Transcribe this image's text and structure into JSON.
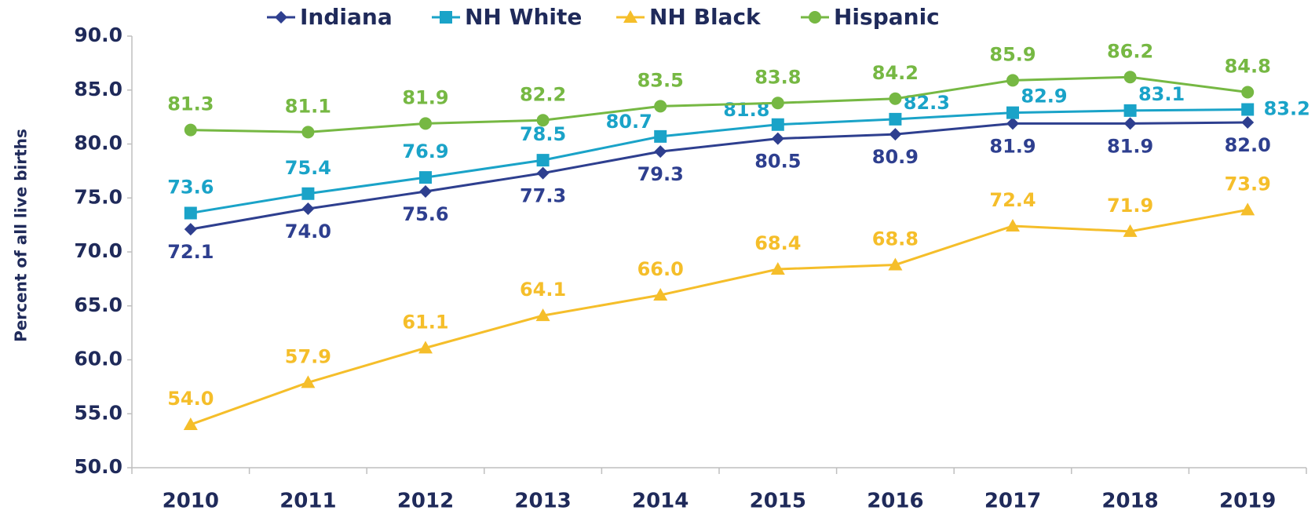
{
  "chart_data": {
    "type": "line",
    "y_label": "Percent of all live births",
    "categories": [
      "2010",
      "2011",
      "2012",
      "2013",
      "2014",
      "2015",
      "2016",
      "2017",
      "2018",
      "2019"
    ],
    "series": [
      {
        "name": "Indiana",
        "color": "#2e3f8f",
        "marker": "diamond",
        "values": [
          72.1,
          74.0,
          75.6,
          77.3,
          79.3,
          80.5,
          80.9,
          81.9,
          81.9,
          82.0
        ],
        "value_labels": [
          "72.1",
          "74.0",
          "75.6",
          "77.3",
          "79.3",
          "80.5",
          "80.9",
          "81.9",
          "81.9",
          "82.0"
        ]
      },
      {
        "name": "NH White",
        "color": "#1aa3c8",
        "marker": "square",
        "values": [
          73.6,
          75.4,
          76.9,
          78.5,
          80.7,
          81.8,
          82.3,
          82.9,
          83.1,
          83.2
        ],
        "value_labels": [
          "73.6",
          "75.4",
          "76.9",
          "78.5",
          "80.7",
          "81.8",
          "82.3",
          "82.9",
          "83.1",
          "83.2"
        ]
      },
      {
        "name": "NH Black",
        "color": "#f5be2a",
        "marker": "triangle",
        "values": [
          54.0,
          57.9,
          61.1,
          64.1,
          66.0,
          68.4,
          68.8,
          72.4,
          71.9,
          73.9
        ],
        "value_labels": [
          "54.0",
          "57.9",
          "61.1",
          "64.1",
          "66.0",
          "68.4",
          "68.8",
          "72.4",
          "71.9",
          "73.9"
        ]
      },
      {
        "name": "Hispanic",
        "color": "#76b843",
        "marker": "circle",
        "values": [
          81.3,
          81.1,
          81.9,
          82.2,
          83.5,
          83.8,
          84.2,
          85.9,
          86.2,
          84.8
        ],
        "value_labels": [
          "81.3",
          "81.1",
          "81.9",
          "82.2",
          "83.5",
          "83.8",
          "84.2",
          "85.9",
          "86.2",
          "84.8"
        ]
      }
    ],
    "ylim": [
      50,
      90
    ],
    "yticks": [
      {
        "value": 50,
        "label": "50.0"
      },
      {
        "value": 55,
        "label": "55.0"
      },
      {
        "value": 60,
        "label": "60.0"
      },
      {
        "value": 65,
        "label": "65.0"
      },
      {
        "value": 70,
        "label": "70.0"
      },
      {
        "value": 75,
        "label": "75.0"
      },
      {
        "value": 80,
        "label": "80.0"
      },
      {
        "value": 85,
        "label": "85.0"
      },
      {
        "value": 90,
        "label": "90.0"
      }
    ],
    "legend": "top",
    "grid": false
  }
}
